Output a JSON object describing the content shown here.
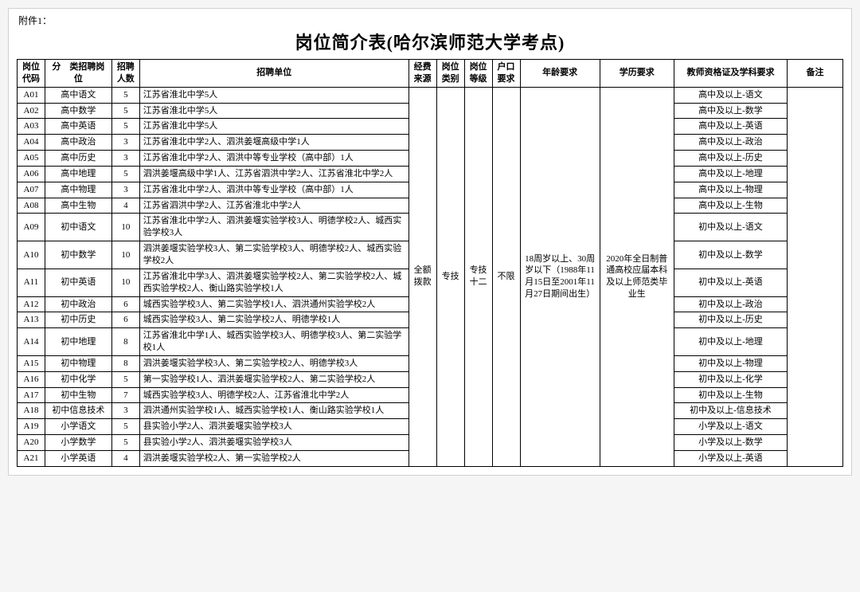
{
  "attachment_label": "附件1：",
  "title": "岗位简介表(哈尔滨师范大学考点)",
  "headers": {
    "code": "岗位代码",
    "position": "分　类招聘岗位",
    "count": "招聘人数",
    "org": "招聘单位",
    "funding": "经费来源",
    "category": "岗位类别",
    "grade": "岗位等级",
    "hukou": "户口要求",
    "age": "年龄要求",
    "education": "学历要求",
    "cert": "教师资格证及学科要求",
    "note": "备注"
  },
  "shared": {
    "funding": "全额拨款",
    "category": "专技",
    "grade": "专技十二",
    "hukou": "不限",
    "age": "18周岁以上、30周岁以下（1988年11月15日至2001年11月27日期间出生）",
    "education": "2020年全日制普通高校应届本科及以上师范类毕业生"
  },
  "rows": [
    {
      "code": "A01",
      "position": "高中语文",
      "count": "5",
      "org": "江苏省淮北中学5人",
      "cert": "高中及以上-语文"
    },
    {
      "code": "A02",
      "position": "高中数学",
      "count": "5",
      "org": "江苏省淮北中学5人",
      "cert": "高中及以上-数学"
    },
    {
      "code": "A03",
      "position": "高中英语",
      "count": "5",
      "org": "江苏省淮北中学5人",
      "cert": "高中及以上-英语"
    },
    {
      "code": "A04",
      "position": "高中政治",
      "count": "3",
      "org": "江苏省淮北中学2人、泗洪姜堰高级中学1人",
      "cert": "高中及以上-政治"
    },
    {
      "code": "A05",
      "position": "高中历史",
      "count": "3",
      "org": "江苏省淮北中学2人、泗洪中等专业学校（高中部）1人",
      "cert": "高中及以上-历史"
    },
    {
      "code": "A06",
      "position": "高中地理",
      "count": "5",
      "org": "泗洪姜堰高级中学1人、江苏省泗洪中学2人、江苏省淮北中学2人",
      "cert": "高中及以上-地理"
    },
    {
      "code": "A07",
      "position": "高中物理",
      "count": "3",
      "org": "江苏省淮北中学2人、泗洪中等专业学校（高中部）1人",
      "cert": "高中及以上-物理"
    },
    {
      "code": "A08",
      "position": "高中生物",
      "count": "4",
      "org": "江苏省泗洪中学2人、江苏省淮北中学2人",
      "cert": "高中及以上-生物"
    },
    {
      "code": "A09",
      "position": "初中语文",
      "count": "10",
      "org": "江苏省淮北中学2人、泗洪姜堰实验学校3人、明德学校2人、城西实验学校3人",
      "cert": "初中及以上-语文"
    },
    {
      "code": "A10",
      "position": "初中数学",
      "count": "10",
      "org": "泗洪姜堰实验学校3人、第二实验学校3人、明德学校2人、城西实验学校2人",
      "cert": "初中及以上-数学"
    },
    {
      "code": "A11",
      "position": "初中英语",
      "count": "10",
      "org": "江苏省淮北中学3人、泗洪姜堰实验学校2人、第二实验学校2人、城西实验学校2人、衡山路实验学校1人",
      "cert": "初中及以上-英语"
    },
    {
      "code": "A12",
      "position": "初中政治",
      "count": "6",
      "org": "城西实验学校3人、第二实验学校1人、泗洪通州实验学校2人",
      "cert": "初中及以上-政治"
    },
    {
      "code": "A13",
      "position": "初中历史",
      "count": "6",
      "org": "城西实验学校3人、第二实验学校2人、明德学校1人",
      "cert": "初中及以上-历史"
    },
    {
      "code": "A14",
      "position": "初中地理",
      "count": "8",
      "org": "江苏省淮北中学1人、城西实验学校3人、明德学校3人、第二实验学校1人",
      "cert": "初中及以上-地理"
    },
    {
      "code": "A15",
      "position": "初中物理",
      "count": "8",
      "org": "泗洪姜堰实验学校3人、第二实验学校2人、明德学校3人",
      "cert": "初中及以上-物理"
    },
    {
      "code": "A16",
      "position": "初中化学",
      "count": "5",
      "org": "第一实验学校1人、泗洪姜堰实验学校2人、第二实验学校2人",
      "cert": "初中及以上-化学"
    },
    {
      "code": "A17",
      "position": "初中生物",
      "count": "7",
      "org": "城西实验学校3人、明德学校2人、江苏省淮北中学2人",
      "cert": "初中及以上-生物"
    },
    {
      "code": "A18",
      "position": "初中信息技术",
      "count": "3",
      "org": "泗洪通州实验学校1人、城西实验学校1人、衡山路实验学校1人",
      "cert": "初中及以上-信息技术"
    },
    {
      "code": "A19",
      "position": "小学语文",
      "count": "5",
      "org": "县实验小学2人、泗洪姜堰实验学校3人",
      "cert": "小学及以上-语文"
    },
    {
      "code": "A20",
      "position": "小学数学",
      "count": "5",
      "org": "县实验小学2人、泗洪姜堰实验学校3人",
      "cert": "小学及以上-数学"
    },
    {
      "code": "A21",
      "position": "小学英语",
      "count": "4",
      "org": "泗洪姜堰实验学校2人、第一实验学校2人",
      "cert": "小学及以上-英语"
    }
  ]
}
